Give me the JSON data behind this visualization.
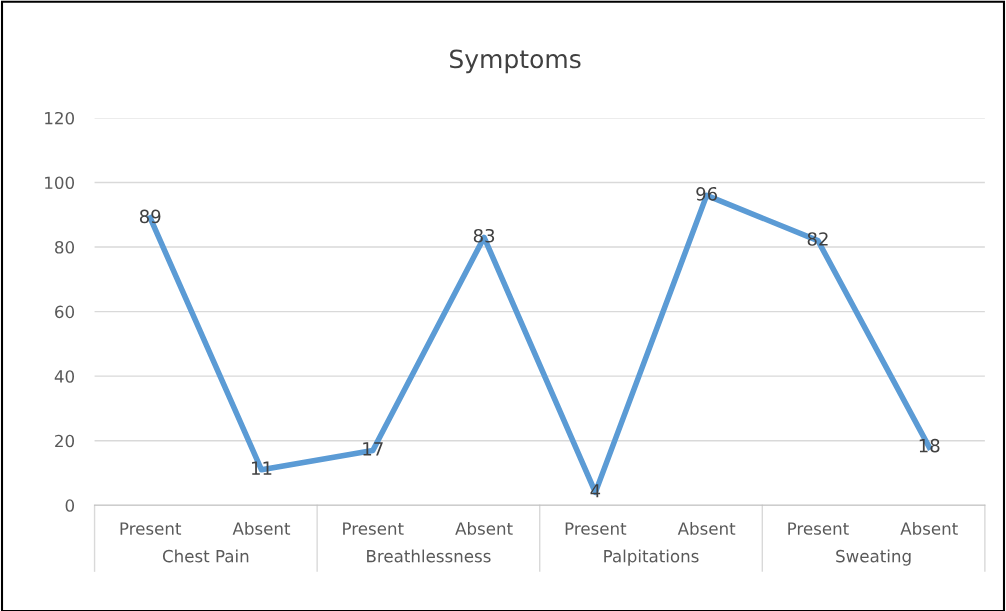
{
  "chart_data": {
    "type": "line",
    "title": "Symptoms",
    "categories": [
      "Present",
      "Absent",
      "Present",
      "Absent",
      "Present",
      "Absent",
      "Present",
      "Absent"
    ],
    "series": [
      {
        "color": "#5b9bd5",
        "values": [
          89,
          11,
          17,
          83,
          4,
          96,
          82,
          18
        ]
      }
    ],
    "annotations": [
      "Chest Pain",
      "Breathlessness",
      "Palpitations",
      "Sweating"
    ],
    "ylim": [
      0,
      120
    ],
    "yticks": [
      0,
      20,
      40,
      60,
      80,
      100,
      120
    ],
    "grid": "y",
    "data_labels": true,
    "legend": false,
    "marker": "none",
    "line_style": "solid"
  }
}
